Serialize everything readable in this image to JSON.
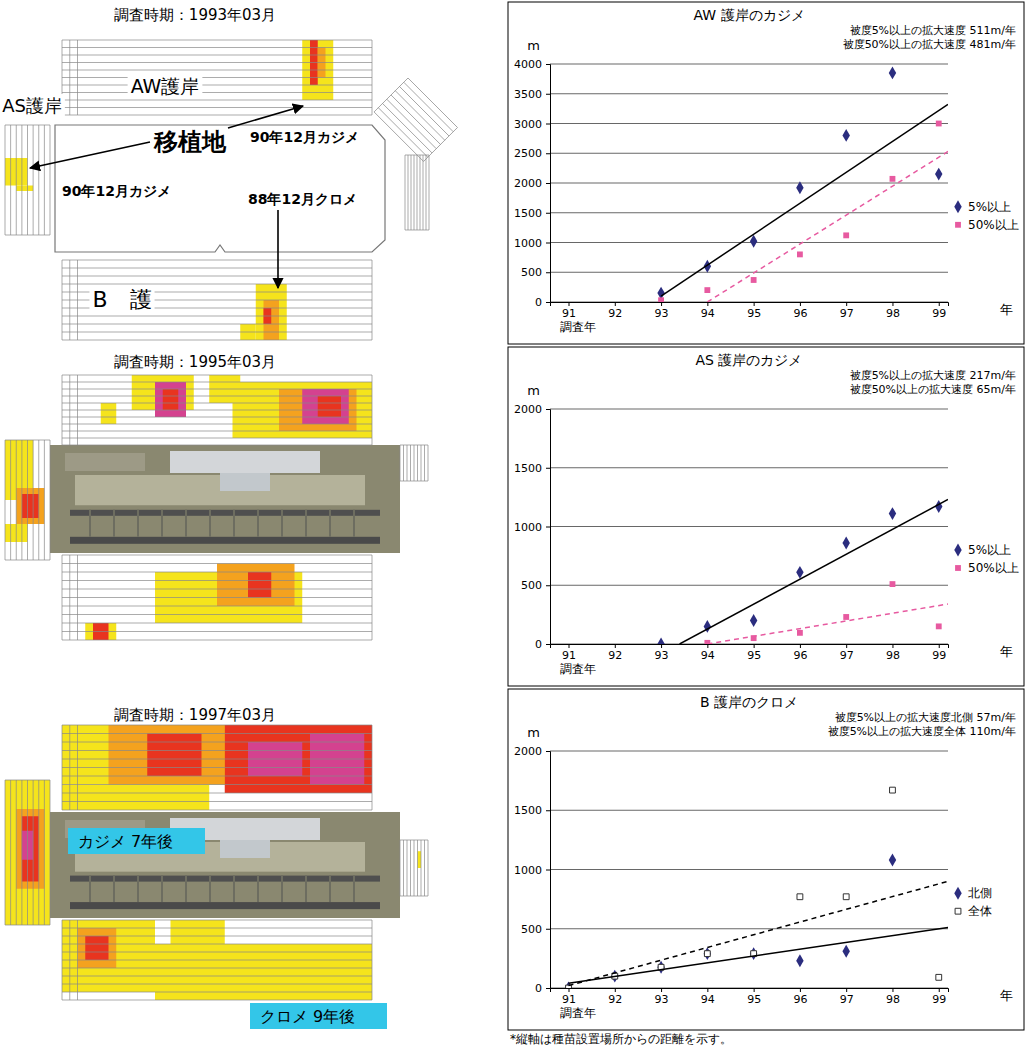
{
  "diagram": {
    "level_colors": [
      "#f5e41c",
      "#f4a21e",
      "#e8341f",
      "#d4428f"
    ],
    "panels": [
      {
        "title": "調査時期：1993年03月",
        "labels": {
          "aw": "AW護岸",
          "as": "AS護岸",
          "site": "移植地",
          "aw_kajime": "90年12月カジメ",
          "as_kajime": "90年12月カジメ",
          "b_kurome": "88年12月クロメ",
          "b": "B　護"
        },
        "cells": {
          "aw": [
            [
              0,
              7,
              31,
              34,
              1
            ],
            [
              0,
              5,
              32,
              32,
              3
            ],
            [
              1,
              4,
              33,
              33,
              2
            ]
          ],
          "as": [
            [
              6,
              10,
              0,
              3,
              1
            ],
            [
              11,
              11,
              2,
              4,
              1
            ]
          ],
          "b": [
            [
              3,
              9,
              25,
              28,
              1
            ],
            [
              8,
              9,
              23,
              24,
              1
            ],
            [
              5,
              9,
              26,
              27,
              2
            ],
            [
              6,
              7,
              26,
              26,
              3
            ]
          ],
          "east": []
        }
      },
      {
        "title": "調査時期：1995年03月",
        "cells": {
          "aw": [
            [
              0,
              4,
              9,
              16,
              1
            ],
            [
              1,
              5,
              12,
              15,
              4
            ],
            [
              2,
              4,
              13,
              14,
              3
            ],
            [
              4,
              6,
              5,
              6,
              1
            ],
            [
              0,
              3,
              19,
              22,
              1
            ],
            [
              1,
              8,
              22,
              39,
              1
            ],
            [
              2,
              7,
              28,
              37,
              2
            ],
            [
              2,
              6,
              31,
              36,
              4
            ],
            [
              3,
              5,
              33,
              35,
              3
            ]
          ],
          "as": [
            [
              0,
              9,
              0,
              4,
              1
            ],
            [
              8,
              13,
              2,
              6,
              2
            ],
            [
              9,
              12,
              3,
              5,
              3
            ],
            [
              14,
              16,
              0,
              3,
              1
            ]
          ],
          "b": [
            [
              2,
              7,
              12,
              30,
              1
            ],
            [
              1,
              5,
              20,
              29,
              2
            ],
            [
              2,
              4,
              24,
              26,
              3
            ],
            [
              8,
              9,
              3,
              6,
              1
            ],
            [
              8,
              9,
              4,
              5,
              3
            ]
          ],
          "east": []
        }
      },
      {
        "title": "調査時期：1997年03月",
        "callouts": {
          "kajime": "カジメ 7年後",
          "kurome": "クロメ 9年後"
        },
        "cells": {
          "aw": [
            [
              0,
              6,
              0,
              39,
              1
            ],
            [
              7,
              9,
              0,
              18,
              1
            ],
            [
              0,
              6,
              6,
              20,
              2
            ],
            [
              1,
              5,
              11,
              17,
              3
            ],
            [
              0,
              7,
              21,
              39,
              3
            ],
            [
              2,
              5,
              24,
              30,
              4
            ],
            [
              1,
              6,
              32,
              38,
              4
            ]
          ],
          "as": [
            [
              0,
              19,
              0,
              7,
              1
            ],
            [
              4,
              14,
              2,
              6,
              2
            ],
            [
              5,
              13,
              3,
              5,
              3
            ],
            [
              7,
              10,
              3,
              4,
              4
            ]
          ],
          "b": [
            [
              0,
              8,
              0,
              11,
              1
            ],
            [
              1,
              5,
              2,
              6,
              2
            ],
            [
              2,
              4,
              3,
              5,
              3
            ],
            [
              3,
              9,
              12,
              39,
              1
            ],
            [
              0,
              2,
              14,
              20,
              1
            ],
            [
              5,
              7,
              22,
              26,
              1
            ]
          ],
          "east": [
            [
              2,
              4,
              5,
              5,
              1
            ]
          ]
        }
      }
    ]
  },
  "chart_data": [
    {
      "type": "scatter",
      "title": "AW 護岸のカジメ",
      "y_label": "m",
      "x_label": "調査年",
      "x_unit": "年",
      "annotations": [
        "被度5%以上の拡大速度 511m/年",
        "被度50%以上の拡大速度 481m/年"
      ],
      "xlim": [
        90.6,
        99.2
      ],
      "xticks": [
        91,
        92,
        93,
        94,
        95,
        96,
        97,
        98,
        99
      ],
      "ylim": [
        0,
        4000
      ],
      "yticks": [
        0,
        500,
        1000,
        1500,
        2000,
        2500,
        3000,
        3500,
        4000
      ],
      "grid": true,
      "legend": "right",
      "series": [
        {
          "name": "5%以上",
          "type": "scatter",
          "marker": "diamond",
          "color": "#2b2d7f",
          "x": [
            93,
            94,
            95,
            96,
            97,
            98,
            99
          ],
          "values": [
            150,
            600,
            1020,
            1920,
            2800,
            3850,
            2150
          ]
        },
        {
          "name": "50%以上",
          "type": "scatter",
          "marker": "square",
          "color": "#e75aa0",
          "x": [
            93,
            94,
            95,
            96,
            97,
            98,
            99
          ],
          "values": [
            30,
            200,
            370,
            800,
            1120,
            2070,
            3000
          ]
        },
        {
          "type": "line",
          "line_style": "solid",
          "color": "#000000",
          "x": [
            93,
            99.2
          ],
          "values": [
            100,
            3320
          ]
        },
        {
          "type": "line",
          "line_style": "dashed",
          "color": "#e75aa0",
          "x": [
            94,
            99.2
          ],
          "values": [
            0,
            2530
          ]
        }
      ]
    },
    {
      "type": "scatter",
      "title": "AS 護岸のカジメ",
      "y_label": "m",
      "x_label": "調査年",
      "x_unit": "年",
      "annotations": [
        "被度5%以上の拡大速度 217m/年",
        "被度50%以上の拡大速度 65m/年"
      ],
      "xlim": [
        90.6,
        99.2
      ],
      "xticks": [
        91,
        92,
        93,
        94,
        95,
        96,
        97,
        98,
        99
      ],
      "ylim": [
        0,
        2000
      ],
      "yticks": [
        0,
        500,
        1000,
        1500,
        2000
      ],
      "grid": true,
      "legend": "right",
      "series": [
        {
          "name": "5%以上",
          "type": "scatter",
          "marker": "diamond",
          "color": "#2b2d7f",
          "x": [
            93,
            94,
            95,
            96,
            97,
            98,
            99
          ],
          "values": [
            0,
            150,
            200,
            610,
            860,
            1110,
            1170
          ]
        },
        {
          "name": "50%以上",
          "type": "scatter",
          "marker": "square",
          "color": "#e75aa0",
          "x": [
            94,
            95,
            96,
            97,
            98,
            99
          ],
          "values": [
            10,
            50,
            95,
            230,
            510,
            150
          ]
        },
        {
          "type": "line",
          "line_style": "solid",
          "color": "#000000",
          "x": [
            93.4,
            99.2
          ],
          "values": [
            0,
            1230
          ]
        },
        {
          "type": "line",
          "line_style": "dashed",
          "color": "#e75aa0",
          "x": [
            94,
            99.2
          ],
          "values": [
            0,
            340
          ]
        }
      ]
    },
    {
      "type": "scatter",
      "title": "B 護岸のクロメ",
      "y_label": "m",
      "x_label": "調査年",
      "x_unit": "年",
      "annotations": [
        "被度5%以上の拡大速度北側 57m/年",
        "被度5%以上の拡大速度全体 110m/年"
      ],
      "xlim": [
        90.6,
        99.2
      ],
      "xticks": [
        91,
        92,
        93,
        94,
        95,
        96,
        97,
        98,
        99
      ],
      "ylim": [
        0,
        2000
      ],
      "yticks": [
        0,
        500,
        1000,
        1500,
        2000
      ],
      "grid": true,
      "legend": "right",
      "series": [
        {
          "name": "北側",
          "type": "scatter",
          "marker": "diamond",
          "color": "#2b2d7f",
          "x": [
            91,
            92,
            93,
            94,
            95,
            96,
            97,
            98
          ],
          "values": [
            0,
            100,
            175,
            290,
            290,
            230,
            310,
            1080
          ]
        },
        {
          "name": "全体",
          "type": "scatter",
          "marker": "square-open",
          "color": "#333333",
          "x": [
            91,
            92,
            93,
            94,
            95,
            96,
            97,
            98,
            99
          ],
          "values": [
            0,
            100,
            175,
            290,
            290,
            770,
            770,
            1670,
            90
          ]
        },
        {
          "type": "line",
          "line_style": "solid",
          "color": "#000000",
          "x": [
            91,
            99.2
          ],
          "values": [
            40,
            510
          ]
        },
        {
          "type": "line",
          "line_style": "dashed",
          "color": "#000000",
          "x": [
            91,
            99.2
          ],
          "values": [
            20,
            900
          ]
        }
      ]
    }
  ],
  "footnote": "*縦軸は種苗設置場所からの距離を示す。"
}
